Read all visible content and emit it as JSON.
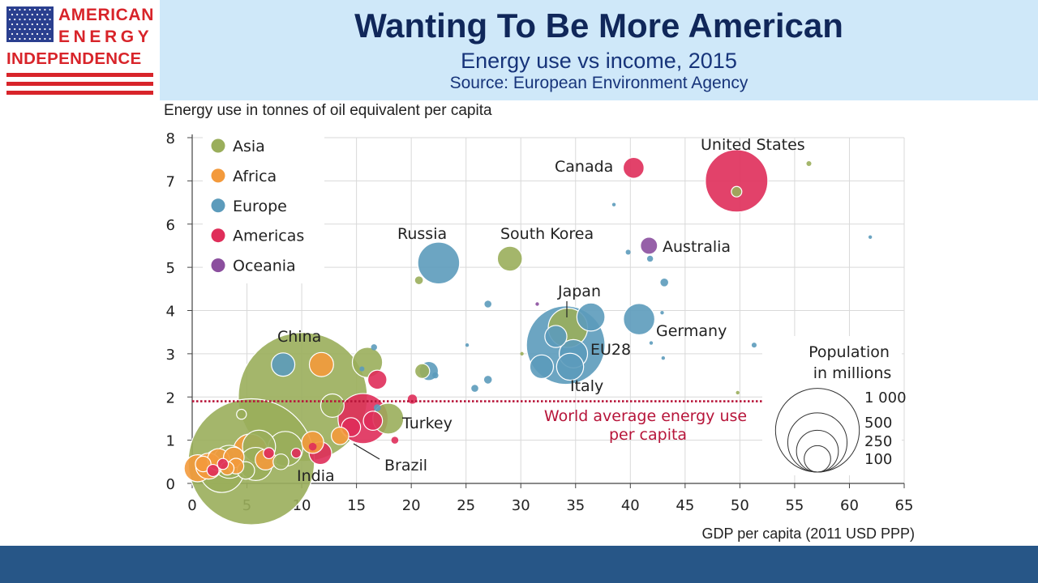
{
  "logo": {
    "line1": "AMERICAN",
    "line2": "ENERGY",
    "line3": "INDEPENDENCE",
    "colors": {
      "red": "#d8242a",
      "blue": "#2a3f8f"
    }
  },
  "header": {
    "title": "Wanting To Be More American",
    "subtitle": "Energy use vs income, 2015",
    "source": "Source: European Environment Agency"
  },
  "chart_data": {
    "type": "scatter",
    "ylabel": "Energy use in tonnes of oil equivalent per capita",
    "xlabel": "GDP per capita (2011 USD PPP)",
    "xlim": [
      0,
      65
    ],
    "ylim": [
      0,
      8
    ],
    "xticks": [
      "0",
      "5",
      "10",
      "15",
      "20",
      "25",
      "30",
      "35",
      "40",
      "45",
      "50",
      "55",
      "60",
      "65"
    ],
    "yticks": [
      "0",
      "1",
      "2",
      "3",
      "4",
      "5",
      "6",
      "7",
      "8"
    ],
    "grid": true,
    "legend_position": "top-left",
    "legend": [
      {
        "name": "Asia",
        "color": "#9aae5b"
      },
      {
        "name": "Africa",
        "color": "#f39a3c"
      },
      {
        "name": "Europe",
        "color": "#5c9bbb"
      },
      {
        "name": "Americas",
        "color": "#df2e5a"
      },
      {
        "name": "Oceania",
        "color": "#8b4f9e"
      }
    ],
    "reference_line": {
      "y": 1.9,
      "label_line1": "World average energy use",
      "label_line2": "per capita",
      "color": "#b7153a"
    },
    "size_legend": {
      "title_line1": "Population",
      "title_line2": "in millions",
      "values": [
        "1 000",
        "500",
        "250",
        "100"
      ]
    },
    "points": [
      {
        "x": 10.1,
        "y": 2.0,
        "pop": 1370,
        "region": "Asia",
        "label": "China"
      },
      {
        "x": 5.4,
        "y": 0.5,
        "pop": 1310,
        "region": "Asia",
        "label": "India"
      },
      {
        "x": 34.1,
        "y": 3.2,
        "pop": 508,
        "region": "Europe",
        "label": "EU28"
      },
      {
        "x": 49.7,
        "y": 7.0,
        "pop": 321,
        "region": "Americas",
        "label": "United States"
      },
      {
        "x": 22.5,
        "y": 5.1,
        "pop": 144,
        "region": "Europe",
        "label": "Russia"
      },
      {
        "x": 15.6,
        "y": 1.5,
        "pop": 206,
        "region": "Americas",
        "label": "Brazil"
      },
      {
        "x": 34.3,
        "y": 3.6,
        "pop": 127,
        "region": "Asia",
        "label": "Japan"
      },
      {
        "x": 40.8,
        "y": 3.8,
        "pop": 81,
        "region": "Europe",
        "label": "Germany"
      },
      {
        "x": 40.3,
        "y": 7.3,
        "pop": 36,
        "region": "Americas",
        "label": "Canada"
      },
      {
        "x": 29.0,
        "y": 5.2,
        "pop": 51,
        "region": "Asia",
        "label": "South Korea"
      },
      {
        "x": 41.7,
        "y": 5.5,
        "pop": 24,
        "region": "Oceania",
        "label": "Australia"
      },
      {
        "x": 17.9,
        "y": 1.5,
        "pop": 78,
        "region": "Asia",
        "label": "Turkey"
      },
      {
        "x": 34.5,
        "y": 2.7,
        "pop": 60,
        "region": "Europe",
        "label": "Italy"
      },
      {
        "x": 34.8,
        "y": 3.0,
        "pop": 66,
        "region": "Europe"
      },
      {
        "x": 36.4,
        "y": 3.85,
        "pop": 65,
        "region": "Europe"
      },
      {
        "x": 31.9,
        "y": 2.7,
        "pop": 46,
        "region": "Europe"
      },
      {
        "x": 33.2,
        "y": 3.4,
        "pop": 40,
        "region": "Europe"
      },
      {
        "x": 8.3,
        "y": 2.75,
        "pop": 45,
        "region": "Europe"
      },
      {
        "x": 11.8,
        "y": 2.75,
        "pop": 48,
        "region": "Africa"
      },
      {
        "x": 16.0,
        "y": 2.8,
        "pop": 75,
        "region": "Asia"
      },
      {
        "x": 21.6,
        "y": 2.6,
        "pop": 30,
        "region": "Europe"
      },
      {
        "x": 21.0,
        "y": 2.6,
        "pop": 18,
        "region": "Asia"
      },
      {
        "x": 16.9,
        "y": 2.4,
        "pop": 30,
        "region": "Americas"
      },
      {
        "x": 12.8,
        "y": 1.8,
        "pop": 45,
        "region": "Asia"
      },
      {
        "x": 16.5,
        "y": 1.45,
        "pop": 30,
        "region": "Americas"
      },
      {
        "x": 11.7,
        "y": 0.7,
        "pop": 42,
        "region": "Americas"
      },
      {
        "x": 11.0,
        "y": 0.95,
        "pop": 40,
        "region": "Africa"
      },
      {
        "x": 13.5,
        "y": 1.1,
        "pop": 25,
        "region": "Africa"
      },
      {
        "x": 14.5,
        "y": 1.3,
        "pop": 30,
        "region": "Americas"
      },
      {
        "x": 8.5,
        "y": 0.8,
        "pop": 100,
        "region": "Asia"
      },
      {
        "x": 6.1,
        "y": 0.85,
        "pop": 90,
        "region": "Asia"
      },
      {
        "x": 3.4,
        "y": 0.5,
        "pop": 90,
        "region": "Asia"
      },
      {
        "x": 2.7,
        "y": 0.3,
        "pop": 160,
        "region": "Asia"
      },
      {
        "x": 5.8,
        "y": 0.45,
        "pop": 90,
        "region": "Asia"
      },
      {
        "x": 5.3,
        "y": 0.75,
        "pop": 95,
        "region": "Africa"
      },
      {
        "x": 1.5,
        "y": 0.4,
        "pop": 55,
        "region": "Africa"
      },
      {
        "x": 2.4,
        "y": 0.55,
        "pop": 40,
        "region": "Africa"
      },
      {
        "x": 0.5,
        "y": 0.35,
        "pop": 60,
        "region": "Africa"
      },
      {
        "x": 3.8,
        "y": 0.6,
        "pop": 35,
        "region": "Africa"
      },
      {
        "x": 6.7,
        "y": 0.55,
        "pop": 35,
        "region": "Africa"
      },
      {
        "x": 4.5,
        "y": 1.6,
        "pop": 8,
        "region": "Asia"
      },
      {
        "x": 20.7,
        "y": 4.7,
        "pop": 5,
        "region": "Asia"
      },
      {
        "x": 11.3,
        "y": 4.85,
        "pop": 1,
        "region": "Asia"
      },
      {
        "x": 56.3,
        "y": 7.4,
        "pop": 2,
        "region": "Asia"
      },
      {
        "x": 49.7,
        "y": 6.75,
        "pop": 9,
        "region": "Asia"
      },
      {
        "x": 38.5,
        "y": 6.45,
        "pop": 1,
        "region": "Europe"
      },
      {
        "x": 61.9,
        "y": 5.7,
        "pop": 1,
        "region": "Europe"
      },
      {
        "x": 39.8,
        "y": 5.35,
        "pop": 2,
        "region": "Europe"
      },
      {
        "x": 41.8,
        "y": 5.2,
        "pop": 3,
        "region": "Europe"
      },
      {
        "x": 43.1,
        "y": 4.65,
        "pop": 5,
        "region": "Europe"
      },
      {
        "x": 42.9,
        "y": 3.95,
        "pop": 1,
        "region": "Europe"
      },
      {
        "x": 51.3,
        "y": 3.2,
        "pop": 2,
        "region": "Europe"
      },
      {
        "x": 41.9,
        "y": 3.25,
        "pop": 1,
        "region": "Europe"
      },
      {
        "x": 43.0,
        "y": 2.9,
        "pop": 1,
        "region": "Europe"
      },
      {
        "x": 27.0,
        "y": 4.15,
        "pop": 4,
        "region": "Europe"
      },
      {
        "x": 31.5,
        "y": 4.15,
        "pop": 1,
        "region": "Oceania"
      },
      {
        "x": 27.0,
        "y": 2.4,
        "pop": 5,
        "region": "Europe"
      },
      {
        "x": 25.8,
        "y": 2.2,
        "pop": 4,
        "region": "Europe"
      },
      {
        "x": 25.1,
        "y": 3.2,
        "pop": 1,
        "region": "Europe"
      },
      {
        "x": 22.2,
        "y": 2.5,
        "pop": 3,
        "region": "Europe"
      },
      {
        "x": 16.6,
        "y": 3.15,
        "pop": 3,
        "region": "Europe"
      },
      {
        "x": 16.9,
        "y": 1.75,
        "pop": 4,
        "region": "Europe"
      },
      {
        "x": 15.5,
        "y": 2.65,
        "pop": 2,
        "region": "Europe"
      },
      {
        "x": 30.1,
        "y": 3.0,
        "pop": 1,
        "region": "Asia"
      },
      {
        "x": 49.8,
        "y": 2.1,
        "pop": 1,
        "region": "Asia"
      },
      {
        "x": 20.1,
        "y": 1.95,
        "pop": 7,
        "region": "Americas"
      },
      {
        "x": 18.5,
        "y": 1.0,
        "pop": 4,
        "region": "Americas"
      },
      {
        "x": 11.0,
        "y": 0.85,
        "pop": 5,
        "region": "Americas"
      },
      {
        "x": 9.5,
        "y": 0.7,
        "pop": 8,
        "region": "Americas"
      },
      {
        "x": 7.0,
        "y": 0.7,
        "pop": 10,
        "region": "Americas"
      },
      {
        "x": 2.8,
        "y": 0.45,
        "pop": 10,
        "region": "Americas"
      },
      {
        "x": 1.9,
        "y": 0.3,
        "pop": 12,
        "region": "Americas"
      },
      {
        "x": 8.1,
        "y": 0.5,
        "pop": 20,
        "region": "Asia"
      },
      {
        "x": 4.9,
        "y": 0.3,
        "pop": 25,
        "region": "Asia"
      },
      {
        "x": 4.0,
        "y": 0.4,
        "pop": 20,
        "region": "Africa"
      },
      {
        "x": 3.2,
        "y": 0.35,
        "pop": 15,
        "region": "Africa"
      },
      {
        "x": 1.0,
        "y": 0.45,
        "pop": 20,
        "region": "Africa"
      }
    ]
  }
}
